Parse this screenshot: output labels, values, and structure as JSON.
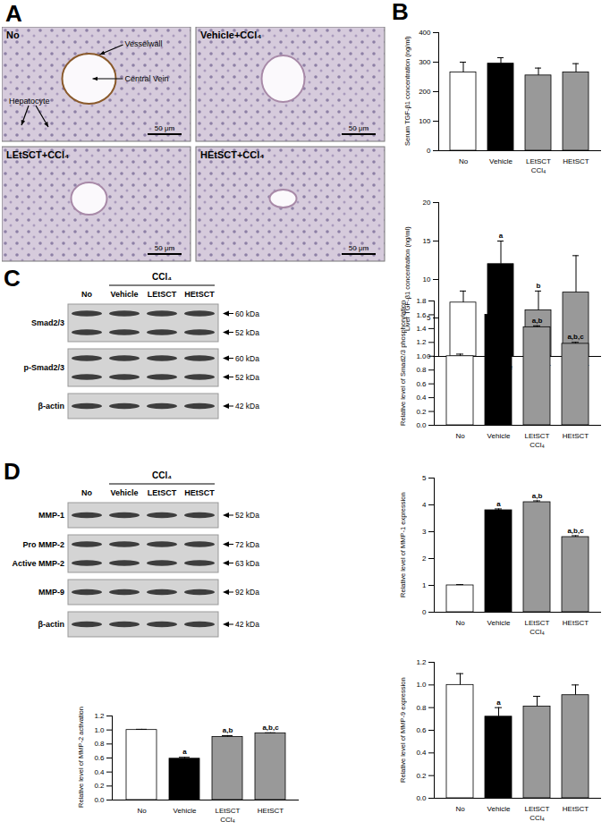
{
  "panels": [
    "A",
    "B",
    "C",
    "D"
  ],
  "histology": {
    "images": [
      "No",
      "Vehicle+CCl₄",
      "LEtSCT+CCl₄",
      "HEtSCT+CCl₄"
    ],
    "annotations": {
      "vessel_wall": "Vesselwall",
      "central_vein": "Central Vein",
      "hepatocyte": "Hepatocyte"
    },
    "scale_bar": "50 μm"
  },
  "blots": [
    {
      "group_label": "CCl₄",
      "lanes": [
        "No",
        "Vehicle",
        "LEtSCT",
        "HEtSCT"
      ],
      "rows": [
        {
          "names": [
            "Smad2/3"
          ],
          "sizes": [
            "60 kDa",
            "52 kDa"
          ]
        },
        {
          "names": [
            "p-Smad2/3"
          ],
          "sizes": [
            "60 kDa",
            "52 kDa"
          ]
        },
        {
          "names": [
            "β-actin"
          ],
          "sizes": [
            "42 kDa"
          ]
        }
      ]
    },
    {
      "group_label": "CCl₄",
      "lanes": [
        "No",
        "Vehicle",
        "LEtSCT",
        "HEtSCT"
      ],
      "rows": [
        {
          "names": [
            "MMP-1"
          ],
          "sizes": [
            "52 kDa"
          ]
        },
        {
          "names": [
            "Pro MMP-2",
            "Active MMP-2"
          ],
          "sizes": [
            "72 kDa",
            "63 kDa"
          ]
        },
        {
          "names": [
            "MMP-9"
          ],
          "sizes": [
            "92 kDa"
          ]
        },
        {
          "names": [
            "β-actin"
          ],
          "sizes": [
            "42 kDa"
          ]
        }
      ]
    }
  ],
  "chart_data": [
    {
      "type": "bar",
      "y_label": "Serum TGF-β1 concentration (ng/ml)",
      "categories": [
        "No",
        "Vehicle",
        "LEtSCT",
        "HEtSCT"
      ],
      "group_label": "CCl₄",
      "values": [
        265,
        295,
        255,
        265
      ],
      "errors": [
        35,
        20,
        25,
        30
      ],
      "significance": [
        null,
        null,
        null,
        null
      ],
      "colors": [
        "#ffffff",
        "#000000",
        "#999999",
        "#999999"
      ],
      "ylim": [
        0,
        400
      ],
      "yticks": [
        0,
        100,
        200,
        300,
        400
      ]
    },
    {
      "type": "bar",
      "y_label": "Liver TGF-β1 concentration (ng/ml)",
      "categories": [
        "No",
        "Vehicle",
        "LEtSCT",
        "HEtSCT"
      ],
      "group_label": "CCl₄",
      "values": [
        7,
        12,
        6,
        8.3
      ],
      "errors": [
        1.5,
        3,
        2.5,
        4.8
      ],
      "significance": [
        null,
        "a",
        "b",
        null
      ],
      "colors": [
        "#ffffff",
        "#000000",
        "#999999",
        "#999999"
      ],
      "ylim": [
        0,
        20
      ],
      "yticks": [
        0,
        5,
        10,
        15,
        20
      ]
    },
    {
      "type": "bar",
      "y_label": "Relative level of Smad2/3 phosphorylation",
      "categories": [
        "No",
        "Vehicle",
        "LEtSCT",
        "HEtSCT"
      ],
      "group_label": "CCl₄",
      "values": [
        1.0,
        1.6,
        1.42,
        1.18
      ],
      "errors": [
        0.03,
        0.02,
        0.02,
        0.02
      ],
      "significance": [
        null,
        "a",
        "a,b",
        "a,b,c"
      ],
      "colors": [
        "#ffffff",
        "#000000",
        "#999999",
        "#999999"
      ],
      "ylim": [
        0,
        1.8
      ],
      "yticks": [
        {
          "value": 0,
          "label": "0.0"
        },
        0.2,
        0.4,
        0.6,
        0.8,
        {
          "value": 1,
          "label": "1.0"
        },
        1.2,
        1.4,
        1.6,
        1.8
      ]
    },
    {
      "type": "bar",
      "y_label": "Relative level of MMP-1 expression",
      "categories": [
        "No",
        "Vehicle",
        "LEtSCT",
        "HEtSCT"
      ],
      "group_label": "CCl₄",
      "values": [
        1.0,
        3.8,
        4.1,
        2.8
      ],
      "errors": [
        0.03,
        0.05,
        0.05,
        0.05
      ],
      "significance": [
        null,
        "a",
        "a,b",
        "a,b,c"
      ],
      "colors": [
        "#ffffff",
        "#000000",
        "#999999",
        "#999999"
      ],
      "ylim": [
        0,
        5
      ],
      "yticks": [
        0,
        1,
        2,
        3,
        4,
        5
      ]
    },
    {
      "type": "bar",
      "y_label": "Relative level of MMP-2 activation",
      "categories": [
        "No",
        "Vehicle",
        "LEtSCT",
        "HEtSCT"
      ],
      "group_label": "CCl₄",
      "values": [
        1.0,
        0.59,
        0.9,
        0.95
      ],
      "errors": [
        0.01,
        0.02,
        0.02,
        0.01
      ],
      "significance": [
        null,
        "a",
        "a,b",
        "a,b,c"
      ],
      "colors": [
        "#ffffff",
        "#000000",
        "#999999",
        "#999999"
      ],
      "ylim": [
        0,
        1.2
      ],
      "yticks": [
        {
          "value": 0,
          "label": "0.0"
        },
        0.2,
        0.4,
        0.6,
        0.8,
        {
          "value": 1,
          "label": "1.0"
        },
        1.2
      ]
    },
    {
      "type": "bar",
      "y_label": "Relative level of MMP-9 expression",
      "categories": [
        "No",
        "Vehicle",
        "LEtSCT",
        "HEtSCT"
      ],
      "group_label": "CCl₄",
      "values": [
        1.0,
        0.72,
        0.81,
        0.91
      ],
      "errors": [
        0.1,
        0.08,
        0.09,
        0.09
      ],
      "significance": [
        null,
        "a",
        null,
        null
      ],
      "colors": [
        "#ffffff",
        "#000000",
        "#999999",
        "#999999"
      ],
      "ylim": [
        0,
        1.2
      ],
      "yticks": [
        {
          "value": 0,
          "label": "0.0"
        },
        0.2,
        0.4,
        0.6,
        0.8,
        {
          "value": 1,
          "label": "1.0"
        },
        1.2
      ]
    }
  ]
}
